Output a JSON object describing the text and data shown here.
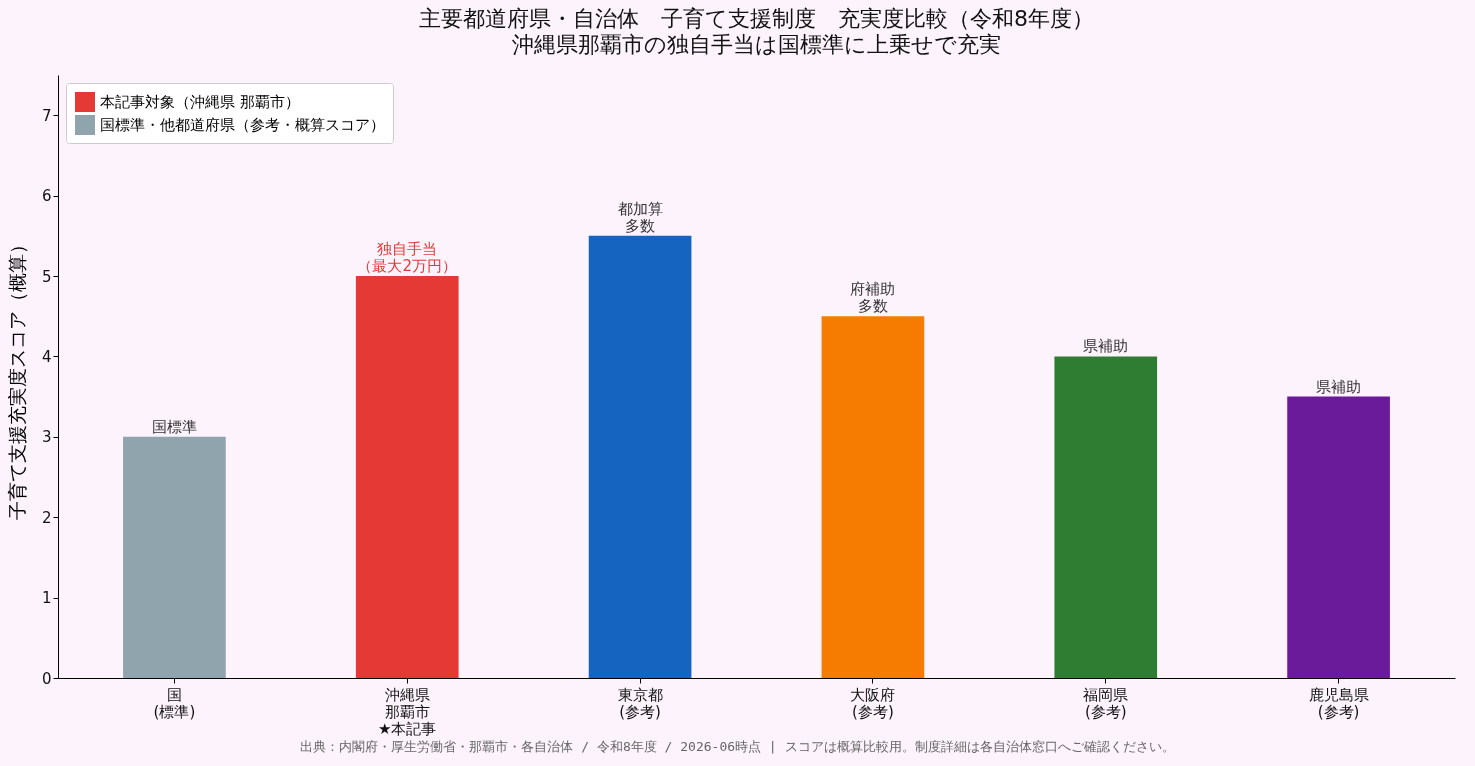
{
  "chart_data": {
    "type": "bar",
    "title": "主要都道府県・自治体　子育て支援制度　充実度比較（令和8年度）",
    "subtitle": "沖縄県那覇市の独自手当は国標準に上乗せで充実",
    "ylabel": "子育て支援充実度スコア（概算）",
    "categories": [
      "国(標準)",
      "沖縄県那覇市★本記事",
      "東京都(参考)",
      "大阪府(参考)",
      "福岡県(参考)",
      "鹿児島県(参考)"
    ],
    "series": [
      {
        "name": "本記事対象（沖縄県 那覇市）",
        "color": "#e53935",
        "values": [
          null,
          5,
          null,
          null,
          null,
          null
        ]
      },
      {
        "name": "国標準・他都道府県（参考・概算スコア）",
        "color": "#90a4ae",
        "values": [
          3,
          null,
          5.5,
          4.5,
          4,
          3.5
        ],
        "colors": [
          "#90a4ae",
          null,
          "#1565c0",
          "#f57c00",
          "#2e7d32",
          "#6a1b9a"
        ]
      }
    ],
    "value_labels": [
      "国標準",
      "独自手当（最大2万円）",
      "都加算多数",
      "府補助多数",
      "県補助",
      "県補助"
    ],
    "ylim": [
      0,
      7.5
    ],
    "yticks": [
      0,
      1,
      2,
      3,
      4,
      5,
      6,
      7
    ],
    "legend": "top left",
    "annotations": [
      "出典：内閣府・厚生労働省・那覇市・各自治体 / 令和8年度 / 2026-06時点 | スコアは概算比較用。制度詳細は各自治体窓口へご確認ください。"
    ]
  }
}
